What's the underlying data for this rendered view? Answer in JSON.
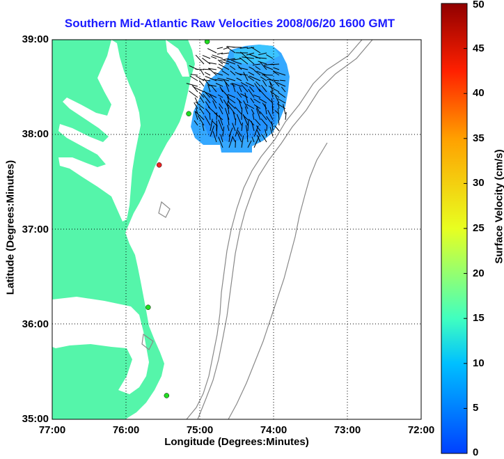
{
  "title": "Southern Mid-Atlantic Raw Velocities 2008/06/20 1600 GMT",
  "axes": {
    "xlabel": "Longitude (Degrees:Minutes)",
    "ylabel": "Latitude (Degrees:Minutes)",
    "xticks": [
      {
        "label": "77:00",
        "lon": -77
      },
      {
        "label": "76:00",
        "lon": -76
      },
      {
        "label": "75:00",
        "lon": -75
      },
      {
        "label": "74:00",
        "lon": -74
      },
      {
        "label": "73:00",
        "lon": -73
      },
      {
        "label": "72:00",
        "lon": -72
      }
    ],
    "yticks": [
      {
        "label": "39:00",
        "lat": 39
      },
      {
        "label": "38:00",
        "lat": 38
      },
      {
        "label": "37:00",
        "lat": 37
      },
      {
        "label": "36:00",
        "lat": 36
      },
      {
        "label": "35:00",
        "lat": 35
      }
    ],
    "xlim": [
      -77,
      -72
    ],
    "ylim": [
      35,
      39
    ]
  },
  "colorbar": {
    "label": "Surface Velocity (cm/s)",
    "min": 0,
    "max": 50,
    "ticks": [
      "0",
      "5",
      "10",
      "15",
      "20",
      "25",
      "30",
      "35",
      "40",
      "45",
      "50"
    ]
  },
  "colors": {
    "land": "#55f5aa",
    "title": "#1a1aff",
    "station": "#22dd22",
    "station_alert": "#ee2222",
    "bathymetry": "#888888",
    "arrows": "#000000"
  },
  "stations": [
    {
      "lon": -74.9,
      "lat": 38.98,
      "status": "ok"
    },
    {
      "lon": -75.15,
      "lat": 38.22,
      "status": "ok"
    },
    {
      "lon": -75.55,
      "lat": 37.68,
      "status": "alert"
    },
    {
      "lon": -75.7,
      "lat": 36.18,
      "status": "ok"
    },
    {
      "lon": -75.45,
      "lat": 35.25,
      "status": "ok"
    }
  ]
}
